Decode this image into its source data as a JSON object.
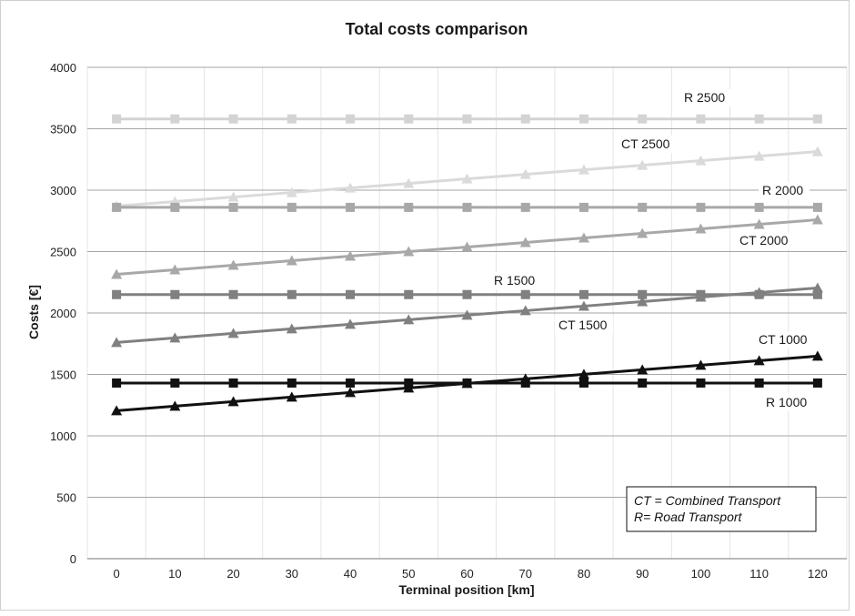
{
  "chart_data": {
    "type": "line",
    "title": "Total costs comparison",
    "xlabel": "Terminal position [km]",
    "ylabel": "Costs [€]",
    "x": [
      0,
      10,
      20,
      30,
      40,
      50,
      60,
      70,
      80,
      90,
      100,
      110,
      120
    ],
    "xlim": [
      0,
      120
    ],
    "ylim": [
      0,
      4000
    ],
    "yticks": [
      0,
      500,
      1000,
      1500,
      2000,
      2500,
      3000,
      3500,
      4000
    ],
    "grid": true,
    "series": [
      {
        "name": "R 2500",
        "color": "#d3d3d3",
        "marker": "square",
        "values": [
          3580,
          3580,
          3580,
          3580,
          3580,
          3580,
          3580,
          3580,
          3580,
          3580,
          3580,
          3580,
          3580
        ]
      },
      {
        "name": "CT 2500",
        "color": "#dadada",
        "marker": "triangle",
        "values": [
          2870,
          2907,
          2944,
          2981,
          3018,
          3055,
          3092,
          3129,
          3166,
          3203,
          3240,
          3277,
          3314
        ]
      },
      {
        "name": "R 2000",
        "color": "#a8a8a8",
        "marker": "square",
        "values": [
          2860,
          2860,
          2860,
          2860,
          2860,
          2860,
          2860,
          2860,
          2860,
          2860,
          2860,
          2860,
          2860
        ]
      },
      {
        "name": "CT 2000",
        "color": "#a8a8a8",
        "marker": "triangle",
        "values": [
          2315,
          2352,
          2389,
          2426,
          2463,
          2500,
          2537,
          2574,
          2611,
          2648,
          2685,
          2722,
          2759
        ]
      },
      {
        "name": "R 1500",
        "color": "#808080",
        "marker": "square",
        "values": [
          2150,
          2150,
          2150,
          2150,
          2150,
          2150,
          2150,
          2150,
          2150,
          2150,
          2150,
          2150,
          2150
        ]
      },
      {
        "name": "CT 1500",
        "color": "#808080",
        "marker": "triangle",
        "values": [
          1760,
          1797,
          1834,
          1871,
          1908,
          1945,
          1982,
          2019,
          2056,
          2093,
          2130,
          2167,
          2204
        ]
      },
      {
        "name": "R 1000",
        "color": "#111111",
        "marker": "square",
        "values": [
          1430,
          1430,
          1430,
          1430,
          1430,
          1430,
          1430,
          1430,
          1430,
          1430,
          1430,
          1430,
          1430
        ]
      },
      {
        "name": "CT 1000",
        "color": "#111111",
        "marker": "triangle",
        "values": [
          1205,
          1242,
          1279,
          1316,
          1353,
          1390,
          1427,
          1464,
          1501,
          1538,
          1575,
          1612,
          1649
        ]
      }
    ],
    "legend": {
      "placement": "bottom-right",
      "lines": [
        "CT = Combined Transport",
        "R= Road Transport"
      ]
    }
  }
}
